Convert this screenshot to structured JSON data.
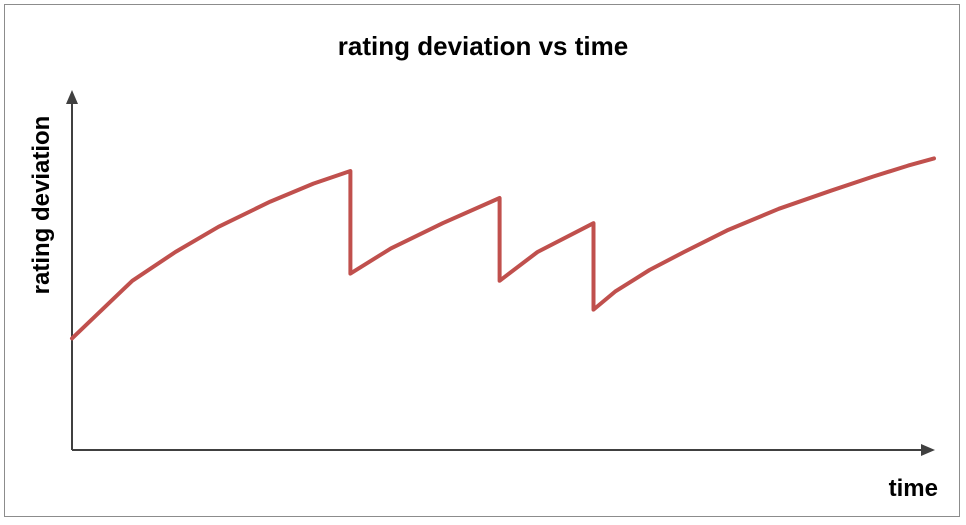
{
  "chart_data": {
    "type": "line",
    "title": "rating deviation vs time",
    "xlabel": "time",
    "ylabel": "rating deviation",
    "xlim": [
      0,
      100
    ],
    "ylim": [
      0,
      100
    ],
    "grid": false,
    "legend": "none",
    "colors": {
      "line": "#c0504d",
      "axis": "#404040",
      "frame": "#8c8c8c"
    },
    "series": [
      {
        "points": [
          [
            0,
            31
          ],
          [
            3.5,
            39
          ],
          [
            7,
            47
          ],
          [
            12,
            55
          ],
          [
            17,
            62
          ],
          [
            23,
            69
          ],
          [
            28,
            74
          ],
          [
            32.3,
            77.5
          ],
          [
            32.3,
            49
          ],
          [
            37,
            56
          ],
          [
            43,
            63
          ],
          [
            49.6,
            70
          ],
          [
            49.6,
            47
          ],
          [
            54,
            55
          ],
          [
            60.5,
            63
          ],
          [
            60.5,
            39
          ],
          [
            63,
            44
          ],
          [
            67,
            50
          ],
          [
            71,
            55
          ],
          [
            76,
            61
          ],
          [
            82,
            67
          ],
          [
            88,
            72
          ],
          [
            93,
            76
          ],
          [
            97,
            79
          ],
          [
            100,
            81
          ]
        ]
      }
    ]
  }
}
